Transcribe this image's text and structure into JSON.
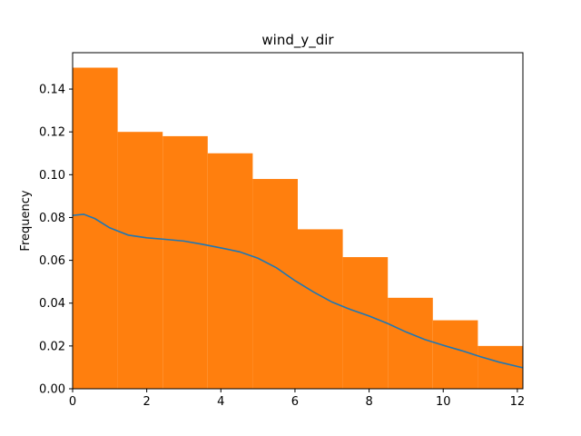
{
  "chart_data": {
    "type": "histogram",
    "title": "wind_y_dir",
    "xlabel": "",
    "ylabel": "Frequency",
    "xlim": [
      0,
      12.15
    ],
    "ylim": [
      0,
      0.157
    ],
    "x_ticks": [
      0,
      2,
      4,
      6,
      8,
      10,
      12
    ],
    "x_tick_labels": [
      "0",
      "2",
      "4",
      "6",
      "8",
      "10",
      "12"
    ],
    "y_ticks": [
      0,
      0.02,
      0.04,
      0.06,
      0.08,
      0.1,
      0.12,
      0.14
    ],
    "y_tick_labels": [
      "0.00",
      "0.02",
      "0.04",
      "0.06",
      "0.08",
      "0.10",
      "0.12",
      "0.14"
    ],
    "bins": {
      "edges": [
        0,
        1.215,
        2.43,
        3.645,
        4.86,
        6.075,
        7.29,
        8.505,
        9.72,
        10.935,
        12.15
      ],
      "values": [
        0.15,
        0.12,
        0.118,
        0.11,
        0.098,
        0.0745,
        0.0615,
        0.0425,
        0.032,
        0.02
      ],
      "color": "#ff7f0e"
    },
    "kde": {
      "color": "#1f77b4",
      "x": [
        0,
        0.3,
        0.6,
        1.0,
        1.5,
        2.0,
        2.5,
        3.0,
        3.5,
        4.0,
        4.5,
        5.0,
        5.5,
        6.0,
        6.5,
        7.0,
        7.5,
        8.0,
        8.5,
        9.0,
        9.5,
        10.0,
        10.5,
        11.0,
        11.5,
        12.15
      ],
      "y": [
        0.081,
        0.0815,
        0.0795,
        0.0752,
        0.0718,
        0.0705,
        0.0698,
        0.069,
        0.0675,
        0.0658,
        0.064,
        0.061,
        0.0565,
        0.0505,
        0.0452,
        0.0405,
        0.037,
        0.034,
        0.0305,
        0.0265,
        0.023,
        0.0203,
        0.0178,
        0.015,
        0.0125,
        0.0098
      ]
    }
  }
}
